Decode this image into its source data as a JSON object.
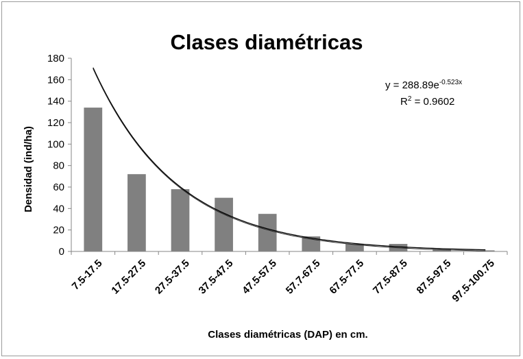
{
  "chart_data": {
    "type": "bar",
    "title": "Clases diamétricas",
    "xlabel": "Clases diamétricas (DAP) en cm.",
    "ylabel": "Densidad (ind/ha)",
    "ylim": [
      0,
      180
    ],
    "yticks": [
      "0",
      "20",
      "40",
      "60",
      "80",
      "100",
      "120",
      "140",
      "160",
      "180"
    ],
    "categories": [
      "7.5-17.5",
      "17.5-27.5",
      "27.5-37.5",
      "37.5-47.5",
      "47.5-57.5",
      "57.7-67.5",
      "67.5-77.5",
      "77.5-87.5",
      "87.5-97.5",
      "97.5-100.75"
    ],
    "values": [
      134,
      72,
      58,
      50,
      35,
      14,
      7,
      7,
      2,
      1
    ],
    "bar_color": "#808080",
    "grid": false,
    "trendline": {
      "type": "exponential",
      "a": 288.89,
      "b": -0.523,
      "equation_base": "y = 288.89e",
      "equation_exp": "-0.523x",
      "r2_base": "R",
      "r2_exp": "2",
      "r2_value": " = 0.9602"
    }
  }
}
